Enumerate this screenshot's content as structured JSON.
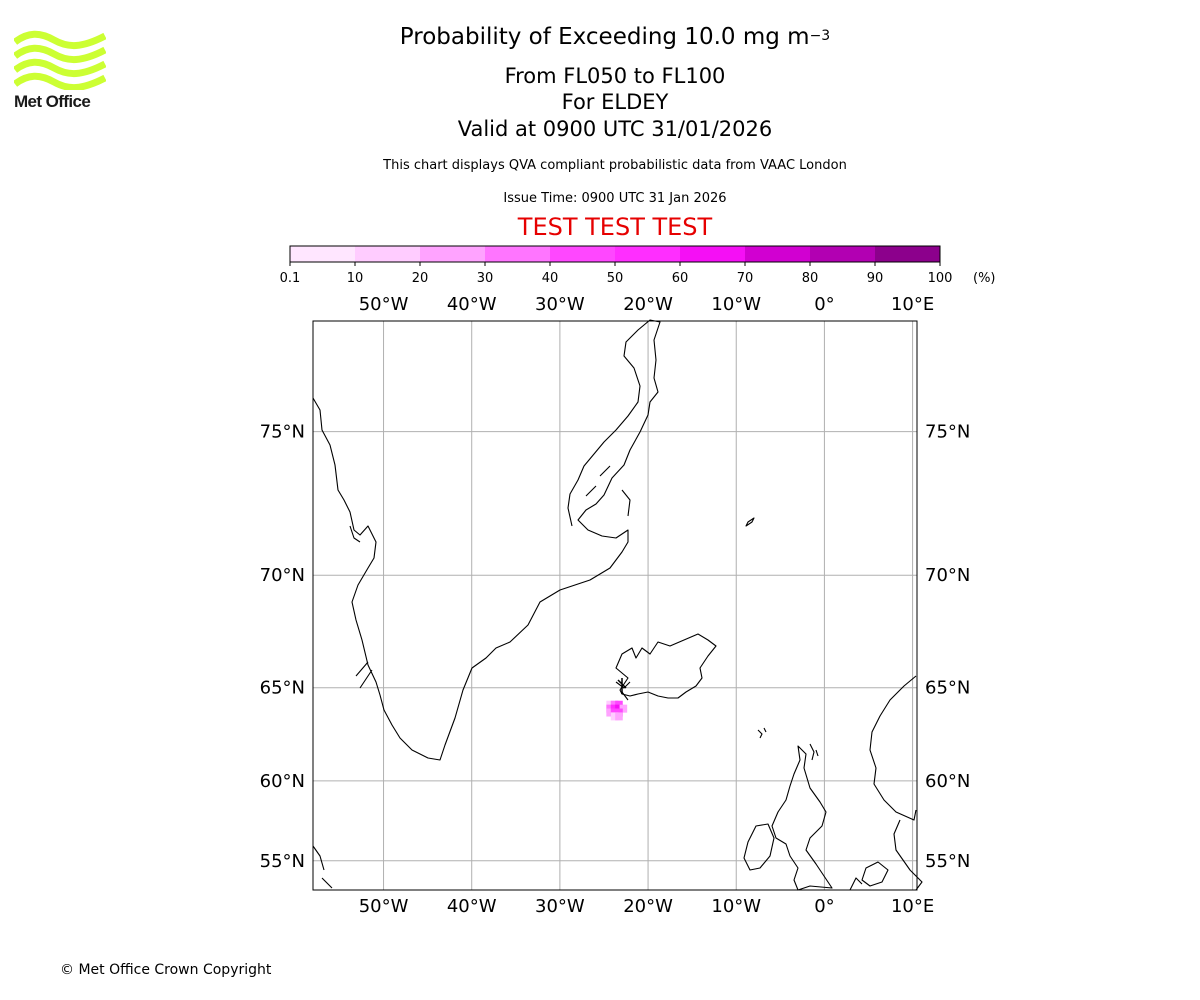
{
  "header": {
    "title_main": "Probability of Exceeding 10.0 mg m",
    "title_exponent": "−3",
    "levels": "From FL050 to FL100",
    "volcano": "For ELDEY",
    "valid": "Valid at 0900 UTC 31/01/2026",
    "subtitle": "This chart displays QVA compliant probabilistic data from VAAC London",
    "issue_time": "Issue Time: 0900 UTC 31 Jan 2026",
    "test_banner": "TEST TEST TEST",
    "test_color": "#e60000"
  },
  "logo": {
    "text": "Met Office",
    "color": "#ccff33"
  },
  "footer": {
    "copyright": "© Met Office Crown Copyright"
  },
  "colorbar": {
    "ticks": [
      "0.1",
      "10",
      "20",
      "30",
      "40",
      "50",
      "60",
      "70",
      "80",
      "90",
      "100"
    ],
    "unit": "(%)",
    "colors": [
      "#ffe6ff",
      "#ffccff",
      "#ffa3ff",
      "#ff75ff",
      "#ff47ff",
      "#ff2eff",
      "#f50ff5",
      "#d100d1",
      "#b200b2",
      "#8c008c",
      "#660066"
    ]
  },
  "chart_data": {
    "type": "map",
    "lon_range": [
      -58,
      10.5
    ],
    "lat_range": [
      53,
      78
    ],
    "meridians": [
      -50,
      -40,
      -30,
      -20,
      -10,
      0,
      10
    ],
    "meridian_labels": [
      "50°W",
      "40°W",
      "30°W",
      "20°W",
      "10°W",
      "0°",
      "10°E"
    ],
    "parallels": [
      75,
      70,
      65,
      60,
      55
    ],
    "parallel_labels": [
      "75°N",
      "70°N",
      "65°N",
      "60°N",
      "55°N"
    ],
    "gridlines": true,
    "probability_plume": {
      "location": "Eldey, SW of Reykjanes peninsula, Iceland",
      "cells": [
        {
          "lon": -24.3,
          "lat": 64.15,
          "prob": 15
        },
        {
          "lon": -23.8,
          "lat": 64.15,
          "prob": 35
        },
        {
          "lon": -23.3,
          "lat": 64.15,
          "prob": 45
        },
        {
          "lon": -24.3,
          "lat": 63.95,
          "prob": 35
        },
        {
          "lon": -23.8,
          "lat": 63.95,
          "prob": 55
        },
        {
          "lon": -23.3,
          "lat": 63.95,
          "prob": 65
        },
        {
          "lon": -22.8,
          "lat": 63.95,
          "prob": 25
        },
        {
          "lon": -24.3,
          "lat": 63.75,
          "prob": 25
        },
        {
          "lon": -23.8,
          "lat": 63.75,
          "prob": 45
        },
        {
          "lon": -23.3,
          "lat": 63.75,
          "prob": 40
        },
        {
          "lon": -23.8,
          "lat": 63.55,
          "prob": 15
        },
        {
          "lon": -23.3,
          "lat": 63.55,
          "prob": 20
        }
      ]
    }
  }
}
